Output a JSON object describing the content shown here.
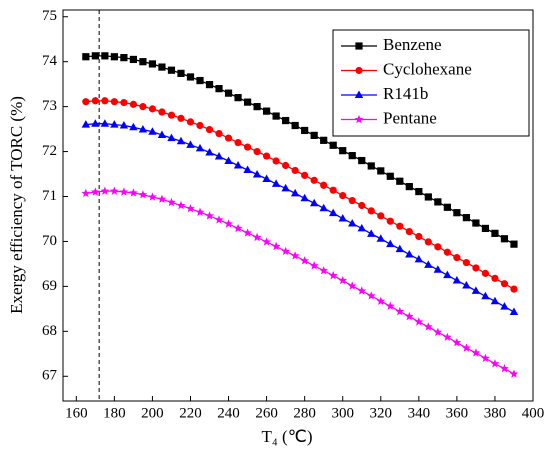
{
  "chart_data": {
    "type": "line",
    "xlabel": "T₄ (℃)",
    "ylabel": "Exergy efficiency of TORC (%)",
    "x": [
      165,
      170,
      175,
      180,
      185,
      190,
      195,
      200,
      205,
      210,
      215,
      220,
      225,
      230,
      235,
      240,
      245,
      250,
      255,
      260,
      265,
      270,
      275,
      280,
      285,
      290,
      295,
      300,
      305,
      310,
      315,
      320,
      325,
      330,
      335,
      340,
      345,
      350,
      355,
      360,
      365,
      370,
      375,
      380,
      385,
      390
    ],
    "series": [
      {
        "name": "Benzene",
        "color": "#000000",
        "marker": "square",
        "values": [
          74.11,
          74.13,
          74.13,
          74.11,
          74.09,
          74.05,
          74.0,
          73.95,
          73.88,
          73.81,
          73.74,
          73.66,
          73.58,
          73.49,
          73.4,
          73.3,
          73.2,
          73.1,
          73.0,
          72.9,
          72.79,
          72.69,
          72.58,
          72.47,
          72.36,
          72.25,
          72.14,
          72.02,
          71.91,
          71.8,
          71.68,
          71.57,
          71.45,
          71.34,
          71.22,
          71.11,
          70.99,
          70.88,
          70.76,
          70.64,
          70.53,
          70.41,
          70.29,
          70.18,
          70.06,
          69.94
        ]
      },
      {
        "name": "Cyclohexane",
        "color": "#ff0000",
        "marker": "circle",
        "values": [
          73.11,
          73.13,
          73.13,
          73.11,
          73.09,
          73.05,
          73.0,
          72.95,
          72.88,
          72.81,
          72.74,
          72.66,
          72.58,
          72.49,
          72.4,
          72.3,
          72.2,
          72.1,
          72.0,
          71.9,
          71.79,
          71.69,
          71.58,
          71.47,
          71.36,
          71.25,
          71.14,
          71.02,
          70.91,
          70.8,
          70.68,
          70.57,
          70.45,
          70.34,
          70.22,
          70.11,
          69.99,
          69.88,
          69.76,
          69.64,
          69.53,
          69.41,
          69.29,
          69.18,
          69.06,
          68.94
        ]
      },
      {
        "name": "R141b",
        "color": "#0000ff",
        "marker": "triangle",
        "values": [
          72.6,
          72.62,
          72.62,
          72.6,
          72.58,
          72.54,
          72.49,
          72.44,
          72.37,
          72.3,
          72.23,
          72.15,
          72.07,
          71.98,
          71.89,
          71.79,
          71.69,
          71.59,
          71.49,
          71.39,
          71.28,
          71.18,
          71.07,
          70.96,
          70.85,
          70.74,
          70.63,
          70.51,
          70.4,
          70.29,
          70.17,
          70.06,
          69.94,
          69.83,
          69.71,
          69.6,
          69.48,
          69.37,
          69.25,
          69.13,
          69.02,
          68.9,
          68.78,
          68.67,
          68.55,
          68.43
        ]
      },
      {
        "name": "Pentane",
        "color": "#ff00ff",
        "marker": "star",
        "values": [
          71.07,
          71.1,
          71.12,
          71.12,
          71.1,
          71.08,
          71.04,
          70.99,
          70.94,
          70.87,
          70.8,
          70.73,
          70.65,
          70.57,
          70.48,
          70.39,
          70.29,
          70.19,
          70.09,
          69.99,
          69.89,
          69.78,
          69.68,
          69.57,
          69.46,
          69.35,
          69.24,
          69.13,
          69.01,
          68.9,
          68.79,
          68.67,
          68.56,
          68.44,
          68.33,
          68.21,
          68.1,
          67.98,
          67.87,
          67.75,
          67.63,
          67.52,
          67.4,
          67.28,
          67.17,
          67.05
        ]
      }
    ],
    "reference_line_x": 172,
    "xlim": [
      153,
      400
    ],
    "xticks": [
      160,
      180,
      200,
      220,
      240,
      260,
      280,
      300,
      320,
      340,
      360,
      380,
      400
    ],
    "ylim": [
      66.45,
      75.15
    ],
    "yticks": [
      67,
      68,
      69,
      70,
      71,
      72,
      73,
      74,
      75
    ],
    "grid": false,
    "legend": "upper right"
  }
}
